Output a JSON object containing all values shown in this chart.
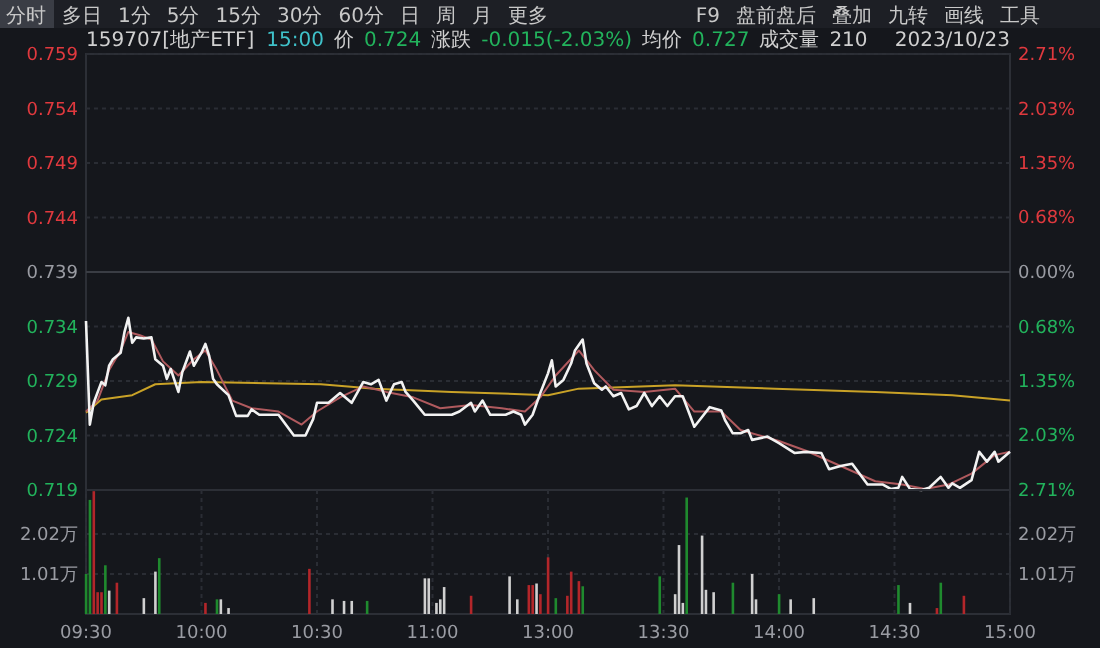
{
  "chart_data": [
    {
      "type": "line",
      "title": "159707[地产ETF]",
      "annotations": [
        "分时",
        "多日",
        "1分",
        "5分",
        "15分",
        "30分",
        "60分",
        "日",
        "周",
        "月",
        "更多",
        "F9",
        "盘前盘后",
        "叠加",
        "九转",
        "画线",
        "工具",
        "15:00",
        "价",
        "0.724",
        "涨跌",
        "-0.015(-2.03%)",
        "均价",
        "0.727",
        "成交量",
        "210",
        "2023/10/23"
      ],
      "categories": [
        null,
        null,
        null,
        null,
        null,
        null,
        null,
        null,
        null,
        null,
        null,
        null,
        null,
        null,
        null,
        null,
        null,
        null,
        null,
        null,
        null,
        null,
        null,
        null,
        null,
        null,
        null,
        null,
        null,
        null,
        null,
        null,
        null,
        null,
        null,
        null,
        null,
        null,
        null,
        null,
        null,
        null,
        null,
        null,
        null,
        null,
        null,
        null,
        null,
        null,
        null,
        null,
        null,
        null,
        null,
        null,
        null,
        null,
        null,
        null,
        null,
        null,
        null,
        null,
        null,
        null,
        null,
        null,
        null,
        null,
        null,
        null,
        null,
        null,
        null,
        null,
        null,
        null,
        null,
        null,
        null,
        null,
        null,
        null,
        null,
        null,
        null,
        null,
        null,
        null,
        null,
        null,
        null,
        null,
        null,
        null,
        null,
        null,
        null,
        null,
        null,
        null,
        null,
        null,
        null,
        null,
        null,
        null,
        null,
        null,
        null,
        null,
        null,
        null,
        null,
        null,
        null,
        null,
        null,
        null,
        null,
        null,
        null,
        null,
        null,
        null,
        null,
        null,
        null,
        null,
        null,
        null,
        null,
        null,
        null,
        null,
        null,
        null,
        null,
        null,
        null,
        null,
        null,
        null,
        null,
        null,
        null,
        null,
        null,
        null,
        null,
        null,
        null,
        null,
        null,
        null,
        null,
        null,
        null,
        null,
        null,
        null,
        null,
        null,
        null,
        null,
        null,
        null,
        null,
        null,
        null,
        null,
        null,
        null,
        null,
        null,
        null,
        null,
        null,
        null,
        null,
        null,
        null,
        null,
        null,
        null,
        null,
        null,
        null,
        null,
        null,
        null,
        null,
        null,
        null,
        null,
        null,
        null,
        null,
        null,
        null,
        null,
        null,
        null,
        null,
        null,
        null,
        null,
        null,
        null,
        null,
        null,
        null,
        null,
        null,
        null,
        null,
        null,
        null,
        null,
        null,
        null,
        null,
        null,
        null,
        null,
        null,
        null,
        null,
        null,
        null,
        null,
        null,
        null,
        null,
        null,
        null,
        null,
        null,
        null,
        null
      ],
      "ylim": [
        0.719,
        0.759
      ],
      "yticks": [
        0.759,
        0.754,
        0.749,
        0.744,
        0.739,
        0.734,
        0.729,
        0.724,
        0.719
      ],
      "y2lim": [
        -2.71,
        2.71
      ],
      "y2ticks": [
        {
          "value": 2.71,
          "label": "2.71%"
        },
        {
          "value": 2.03,
          "label": "2.03%"
        },
        {
          "value": 1.35,
          "label": "1.35%"
        },
        {
          "value": 0.68,
          "label": "0.68%"
        },
        {
          "value": 0,
          "label": "0.00%"
        },
        {
          "value": -0.68,
          "label": "0.68%"
        },
        {
          "value": -1.35,
          "label": "1.35%"
        },
        {
          "value": -2.03,
          "label": "2.03%"
        },
        {
          "value": -2.71,
          "label": "2.71%"
        }
      ],
      "tick_labels": "y",
      "grid": true,
      "ref_lines": [
        {
          "axis": "y",
          "value": 0.739,
          "color": "#3a3d44"
        }
      ],
      "series": [
        {
          "color": "#c9a227",
          "values": [
            0.7261,
            null,
            null,
            null,
            0.7273,
            null,
            null,
            null,
            null,
            null,
            null,
            null,
            0.7277,
            null,
            null,
            null,
            null,
            null,
            0.7287,
            null,
            null,
            null,
            null,
            null,
            null,
            null,
            null,
            null,
            null,
            null,
            0.7289,
            null,
            null,
            null,
            null,
            null,
            null,
            null,
            null,
            null,
            null,
            null,
            null,
            null,
            null,
            null,
            null,
            null,
            null,
            null,
            null,
            null,
            null,
            null,
            null,
            null,
            null,
            null,
            null,
            null,
            null,
            0.7287,
            null,
            null,
            null,
            null,
            null,
            null,
            null,
            null,
            null,
            null,
            null,
            null,
            null,
            0.7283,
            null,
            null,
            null,
            null,
            null,
            null,
            null,
            null,
            null,
            null,
            null,
            null,
            null,
            null,
            null,
            null,
            null,
            null,
            null,
            0.728,
            null,
            null,
            null,
            null,
            null,
            null,
            null,
            null,
            null,
            null,
            null,
            null,
            null,
            null,
            null,
            null,
            null,
            null,
            null,
            null,
            null,
            null,
            null,
            null,
            0.7277,
            null,
            null,
            null,
            null,
            null,
            null,
            null,
            0.7283,
            null,
            null,
            null,
            null,
            null,
            null,
            null,
            null,
            null,
            null,
            null,
            null,
            null,
            null,
            null,
            null,
            null,
            null,
            null,
            null,
            null,
            null,
            null,
            null,
            0.7286,
            null,
            null,
            null,
            null,
            null,
            null,
            null,
            null,
            null,
            null,
            null,
            null,
            null,
            null,
            null,
            null,
            null,
            null,
            null,
            null,
            null,
            null,
            null,
            null,
            null,
            0.7283,
            null,
            null,
            null,
            null,
            null,
            null,
            null,
            null,
            null,
            null,
            null,
            null,
            null,
            null,
            null,
            null,
            null,
            null,
            null,
            null,
            null,
            null,
            null,
            null,
            null,
            0.728,
            null,
            null,
            null,
            null,
            null,
            null,
            null,
            null,
            null,
            null,
            null,
            null,
            null,
            null,
            null,
            null,
            null,
            null,
            null,
            0.7277,
            null,
            null,
            null,
            null,
            null,
            null,
            null,
            null,
            null,
            null,
            null,
            null,
            null,
            null,
            0.7272
          ]
        },
        {
          "color": "#b05a5e",
          "values": [
            0.7262,
            null,
            null,
            0.7272,
            null,
            null,
            0.73,
            null,
            null,
            0.7318,
            null,
            0.7335,
            null,
            null,
            0.7332,
            null,
            null,
            0.7328,
            null,
            null,
            0.7308,
            null,
            null,
            null,
            0.7295,
            null,
            null,
            null,
            0.731,
            null,
            null,
            0.7318,
            null,
            null,
            0.73,
            null,
            null,
            null,
            0.7272,
            null,
            null,
            null,
            null,
            0.7265,
            null,
            null,
            null,
            null,
            null,
            null,
            0.7262,
            null,
            null,
            null,
            null,
            null,
            0.725,
            null,
            null,
            null,
            0.7262,
            null,
            null,
            null,
            null,
            null,
            0.7275,
            null,
            null,
            null,
            null,
            null,
            0.7285,
            null,
            null,
            null,
            null,
            null,
            0.728,
            null,
            null,
            null,
            null,
            null,
            null,
            0.7275,
            null,
            null,
            null,
            null,
            null,
            null,
            0.7265,
            null,
            null,
            null,
            null,
            null,
            null,
            null,
            0.7268,
            null,
            null,
            null,
            null,
            null,
            null,
            null,
            0.7265,
            null,
            null,
            null,
            null,
            null,
            0.7262,
            null,
            null,
            null,
            0.7275,
            null,
            null,
            null,
            0.7295,
            null,
            null,
            null,
            null,
            null,
            0.7318,
            null,
            null,
            null,
            0.73,
            null,
            null,
            null,
            null,
            0.7282,
            null,
            null,
            null,
            null,
            null,
            null,
            null,
            0.728,
            null,
            null,
            null,
            null,
            null,
            null,
            null,
            0.7283,
            null,
            null,
            null,
            null,
            0.7262,
            null,
            null,
            null,
            null,
            null,
            null,
            0.7262,
            null,
            null,
            null,
            null,
            0.7245,
            null,
            null,
            null,
            null,
            null,
            null,
            null,
            null,
            null,
            0.7235,
            null,
            null,
            null,
            null,
            null,
            null,
            0.7226,
            null,
            null,
            null,
            null,
            null,
            null,
            null,
            null,
            0.7212,
            null,
            null,
            null,
            null,
            null,
            null,
            null,
            null,
            0.7198,
            null,
            null,
            null,
            null,
            null,
            null,
            0.7195,
            null,
            null,
            null,
            null,
            null,
            0.7191,
            null,
            null,
            null,
            null,
            null,
            0.7195,
            null,
            null,
            null,
            null,
            null,
            0.7205,
            null,
            null,
            null,
            null,
            null,
            0.7222,
            null,
            null,
            null,
            0.7225
          ]
        },
        {
          "color": "#f2f2f2",
          "values": [
            0.7345,
            0.725,
            0.727,
            null,
            0.7289,
            0.7286,
            0.7304,
            0.731,
            null,
            0.7316,
            0.7335,
            0.7348,
            0.7325,
            0.733,
            null,
            0.7329,
            null,
            0.733,
            0.731,
            null,
            0.7304,
            0.7292,
            0.7301,
            null,
            0.728,
            0.7298,
            null,
            0.7317,
            0.7304,
            null,
            0.7316,
            0.7324,
            0.7313,
            0.7292,
            0.7287,
            null,
            null,
            0.7277,
            null,
            0.7258,
            null,
            null,
            0.7258,
            0.7264,
            null,
            0.7259,
            null,
            null,
            null,
            null,
            0.7259,
            null,
            null,
            null,
            0.724,
            null,
            null,
            0.724,
            null,
            0.7255,
            0.727,
            null,
            null,
            0.727,
            null,
            null,
            0.7279,
            null,
            null,
            0.727,
            null,
            null,
            0.7289,
            null,
            0.7287,
            null,
            0.7291,
            null,
            0.7272,
            null,
            0.7287,
            null,
            0.7289,
            0.728,
            null,
            0.7272,
            null,
            null,
            0.7259,
            null,
            0.7259,
            null,
            0.7259,
            null,
            null,
            0.7259,
            null,
            0.7262,
            null,
            null,
            0.727,
            0.7262,
            null,
            0.7272,
            null,
            0.7259,
            null,
            null,
            null,
            0.7259,
            null,
            0.7262,
            null,
            0.7259,
            0.725,
            null,
            0.7259,
            null,
            0.7279,
            null,
            0.7297,
            0.7309,
            0.7285,
            null,
            0.7291,
            null,
            0.7306,
            0.7318,
            null,
            0.7328,
            0.7306,
            null,
            0.7288,
            null,
            0.7282,
            0.7285,
            null,
            0.7276,
            null,
            0.7279,
            null,
            0.7264,
            null,
            0.7267,
            null,
            0.7279,
            null,
            0.7267,
            null,
            0.7276,
            null,
            0.7267,
            null,
            0.7276,
            null,
            0.7276,
            null,
            null,
            0.7248,
            null,
            0.7257,
            null,
            0.7266,
            null,
            null,
            0.7263,
            0.7254,
            null,
            0.7242,
            null,
            0.7242,
            null,
            0.7245,
            0.7236,
            null,
            null,
            null,
            0.7239,
            null,
            null,
            0.7233,
            null,
            null,
            null,
            0.7224,
            null,
            null,
            0.7225,
            null,
            null,
            null,
            0.7224,
            null,
            0.7209,
            null,
            null,
            0.7212,
            null,
            null,
            0.7214,
            null,
            null,
            null,
            0.7195,
            null,
            null,
            null,
            0.7195,
            null,
            0.7191,
            null,
            0.7192,
            0.7202,
            null,
            0.7191,
            null,
            null,
            0.719,
            null,
            0.7192,
            null,
            null,
            0.7202,
            null,
            0.7192,
            0.7196,
            null,
            0.7192,
            null,
            null,
            0.7199,
            null,
            0.7225,
            null,
            0.7216,
            null,
            0.7225,
            0.7216,
            null,
            null,
            0.7225
          ]
        }
      ]
    },
    {
      "type": "bar",
      "categories": [
        "09:30",
        null,
        null,
        null,
        null,
        null,
        null,
        null,
        null,
        null,
        null,
        null,
        null,
        null,
        null,
        null,
        null,
        null,
        null,
        null,
        null,
        null,
        null,
        null,
        null,
        null,
        null,
        null,
        null,
        null,
        "10:00",
        null,
        null,
        null,
        null,
        null,
        null,
        null,
        null,
        null,
        null,
        null,
        null,
        null,
        null,
        null,
        null,
        null,
        null,
        null,
        null,
        null,
        null,
        null,
        null,
        null,
        null,
        null,
        null,
        null,
        "10:30",
        null,
        null,
        null,
        null,
        null,
        null,
        null,
        null,
        null,
        null,
        null,
        null,
        null,
        null,
        null,
        null,
        null,
        null,
        null,
        null,
        null,
        null,
        null,
        null,
        null,
        null,
        null,
        null,
        null,
        "11:00",
        null,
        null,
        null,
        null,
        null,
        null,
        null,
        null,
        null,
        null,
        null,
        null,
        null,
        null,
        null,
        null,
        null,
        null,
        null,
        null,
        null,
        null,
        null,
        null,
        null,
        null,
        null,
        null,
        null,
        "13:00",
        null,
        null,
        null,
        null,
        null,
        null,
        null,
        null,
        null,
        null,
        null,
        null,
        null,
        null,
        null,
        null,
        null,
        null,
        null,
        null,
        null,
        null,
        null,
        null,
        null,
        null,
        null,
        null,
        null,
        "13:30",
        null,
        null,
        null,
        null,
        null,
        null,
        null,
        null,
        null,
        null,
        null,
        null,
        null,
        null,
        null,
        null,
        null,
        null,
        null,
        null,
        null,
        null,
        null,
        null,
        null,
        null,
        null,
        null,
        null,
        "14:00",
        null,
        null,
        null,
        null,
        null,
        null,
        null,
        null,
        null,
        null,
        null,
        null,
        null,
        null,
        null,
        null,
        null,
        null,
        null,
        null,
        null,
        null,
        null,
        null,
        null,
        null,
        null,
        null,
        null,
        "14:30",
        null,
        null,
        null,
        null,
        null,
        null,
        null,
        null,
        null,
        null,
        null,
        null,
        null,
        null,
        null,
        null,
        null,
        null,
        null,
        null,
        null,
        null,
        null,
        null,
        null,
        null,
        null,
        null,
        null,
        "15:00"
      ],
      "ylim": [
        0,
        3.13
      ],
      "yticks": [
        {
          "value": 1.01,
          "label": "1.01万"
        },
        {
          "value": 2.02,
          "label": "2.02万"
        }
      ],
      "y2lim": [
        0,
        3.13
      ],
      "y2ticks": [
        {
          "value": 1.01,
          "label": "1.01万"
        },
        {
          "value": 2.02,
          "label": "2.02万"
        }
      ],
      "grid": true,
      "series": [
        {
          "color": "#b3262a",
          "values": [
            null,
            null,
            3.1,
            0.55,
            0.55,
            null,
            null,
            null,
            0.79,
            null,
            null,
            null,
            null,
            null,
            null,
            null,
            null,
            null,
            null,
            null,
            null,
            null,
            null,
            null,
            null,
            null,
            null,
            null,
            null,
            null,
            null,
            0.28,
            null,
            null,
            null,
            null,
            null,
            null,
            null,
            null,
            null,
            null,
            null,
            null,
            null,
            null,
            null,
            null,
            null,
            null,
            null,
            null,
            null,
            null,
            null,
            null,
            null,
            null,
            1.14,
            null,
            null,
            null,
            null,
            null,
            null,
            null,
            null,
            null,
            null,
            null,
            null,
            null,
            null,
            null,
            null,
            null,
            null,
            null,
            null,
            null,
            null,
            null,
            null,
            null,
            null,
            null,
            null,
            null,
            null,
            null,
            null,
            null,
            null,
            null,
            null,
            null,
            null,
            null,
            null,
            null,
            0.46,
            null,
            null,
            null,
            null,
            null,
            null,
            null,
            null,
            null,
            null,
            null,
            null,
            null,
            null,
            0.73,
            0.73,
            null,
            0.5,
            null,
            1.43,
            null,
            null,
            null,
            null,
            0.46,
            1.07,
            null,
            0.83,
            null,
            null,
            null,
            null,
            null,
            null,
            null,
            null,
            null,
            null,
            null,
            null,
            null,
            null,
            null,
            null,
            null,
            null,
            null,
            null,
            null,
            null,
            null,
            null,
            null,
            null,
            null,
            null,
            null,
            null,
            null,
            null,
            null,
            null,
            null,
            null,
            null,
            null,
            null,
            null,
            null,
            null,
            null,
            null,
            null,
            null,
            null,
            null,
            null,
            null,
            null,
            null,
            null,
            null,
            null,
            null,
            null,
            null,
            null,
            null,
            null,
            null,
            null,
            null,
            null,
            null,
            null,
            null,
            null,
            null,
            null,
            null,
            null,
            null,
            null,
            null,
            null,
            null,
            null,
            null,
            null,
            null,
            null,
            null,
            null,
            null,
            null,
            null,
            null,
            null,
            null,
            null,
            0.15,
            null,
            null,
            null,
            null,
            null,
            null,
            0.46,
            null,
            null,
            null,
            null,
            null,
            null,
            null,
            null,
            null,
            null,
            null,
            null
          ]
        },
        {
          "color": "#1f8a2e",
          "values": [
            1.01,
            2.88,
            null,
            null,
            null,
            1.23,
            null,
            null,
            null,
            null,
            null,
            null,
            null,
            null,
            null,
            null,
            null,
            null,
            null,
            1.41,
            null,
            null,
            null,
            null,
            null,
            null,
            null,
            null,
            null,
            null,
            null,
            null,
            null,
            null,
            0.37,
            null,
            null,
            null,
            null,
            null,
            null,
            null,
            null,
            null,
            null,
            null,
            null,
            null,
            null,
            null,
            null,
            null,
            null,
            null,
            null,
            null,
            null,
            null,
            null,
            null,
            null,
            null,
            null,
            null,
            null,
            null,
            null,
            null,
            null,
            null,
            null,
            null,
            null,
            0.33,
            null,
            null,
            null,
            null,
            null,
            null,
            null,
            null,
            null,
            null,
            null,
            null,
            null,
            null,
            null,
            null,
            null,
            null,
            null,
            null,
            null,
            null,
            null,
            null,
            null,
            null,
            null,
            null,
            null,
            null,
            null,
            null,
            null,
            null,
            null,
            null,
            null,
            null,
            null,
            null,
            null,
            null,
            null,
            null,
            null,
            null,
            null,
            null,
            0.4,
            null,
            null,
            null,
            null,
            null,
            null,
            0.7,
            null,
            null,
            null,
            null,
            null,
            null,
            null,
            null,
            null,
            null,
            null,
            null,
            null,
            null,
            null,
            null,
            null,
            null,
            null,
            0.95,
            null,
            null,
            null,
            null,
            null,
            null,
            2.94,
            null,
            null,
            null,
            null,
            null,
            null,
            null,
            null,
            null,
            null,
            null,
            0.79,
            null,
            null,
            null,
            null,
            null,
            null,
            null,
            null,
            null,
            null,
            null,
            0.5,
            null,
            null,
            null,
            null,
            null,
            null,
            null,
            null,
            null,
            null,
            null,
            null,
            null,
            null,
            null,
            null,
            null,
            null,
            null,
            null,
            null,
            null,
            null,
            null,
            null,
            null,
            null,
            null,
            null,
            null,
            0.73,
            null,
            null,
            null,
            null,
            null,
            null,
            null,
            null,
            null,
            null,
            0.79,
            null,
            null,
            null,
            null,
            null,
            null,
            null,
            null,
            null,
            null,
            null,
            null,
            null,
            null,
            null,
            null,
            null,
            null
          ]
        },
        {
          "color": "#d0d0d0",
          "values": [
            null,
            null,
            null,
            null,
            null,
            null,
            0.59,
            null,
            null,
            null,
            null,
            null,
            null,
            null,
            null,
            0.4,
            null,
            null,
            1.07,
            null,
            null,
            null,
            null,
            null,
            null,
            null,
            null,
            null,
            null,
            null,
            null,
            null,
            null,
            null,
            null,
            0.37,
            null,
            0.15,
            null,
            null,
            null,
            null,
            null,
            null,
            null,
            null,
            null,
            null,
            null,
            null,
            null,
            null,
            null,
            null,
            null,
            null,
            null,
            null,
            null,
            null,
            null,
            null,
            null,
            null,
            0.37,
            null,
            null,
            0.33,
            null,
            0.33,
            null,
            null,
            null,
            null,
            null,
            null,
            null,
            null,
            null,
            null,
            null,
            null,
            null,
            null,
            null,
            null,
            null,
            null,
            0.9,
            0.9,
            null,
            0.28,
            0.37,
            0.68,
            null,
            null,
            null,
            null,
            null,
            null,
            null,
            null,
            null,
            null,
            null,
            null,
            null,
            null,
            null,
            null,
            0.95,
            null,
            0.37,
            null,
            null,
            null,
            null,
            0.77,
            null,
            null,
            null,
            null,
            null,
            null,
            null,
            null,
            null,
            null,
            null,
            null,
            null,
            null,
            null,
            null,
            null,
            null,
            null,
            null,
            null,
            null,
            null,
            null,
            null,
            null,
            null,
            null,
            null,
            null,
            null,
            null,
            null,
            null,
            null,
            0.5,
            1.74,
            0.28,
            null,
            null,
            null,
            null,
            1.98,
            0.61,
            null,
            0.55,
            null,
            null,
            null,
            null,
            null,
            null,
            null,
            null,
            null,
            1.01,
            0.37,
            null,
            null,
            null,
            null,
            null,
            null,
            null,
            null,
            0.37,
            null,
            null,
            null,
            null,
            null,
            0.4,
            null,
            null,
            null,
            null,
            null,
            null,
            null,
            null,
            null,
            null,
            null,
            null,
            null,
            null,
            null,
            null,
            null,
            null,
            null,
            null,
            null,
            null,
            null,
            null,
            0.28,
            null,
            null,
            null,
            null,
            null,
            null,
            null,
            null,
            null,
            null,
            null,
            null,
            null,
            null,
            null,
            null,
            null,
            null,
            null,
            null,
            null,
            null,
            null,
            null,
            null,
            null
          ]
        }
      ]
    }
  ]
}
